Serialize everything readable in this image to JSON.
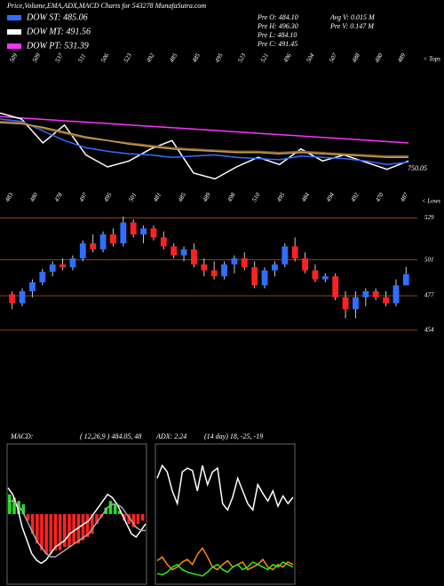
{
  "chart_data": [
    {
      "type": "indicator",
      "title": "Price,Volume,EMA,ADX,MACD Charts for 543278 MunafaSutra.com",
      "legend": [
        {
          "name": "DOW ST: 485.06",
          "color": "#2f6fff"
        },
        {
          "name": "DOW MT: 491.56",
          "color": "#ffffff"
        },
        {
          "name": "DOW PT: 531.39",
          "color": "#ff33ff"
        }
      ],
      "info": [
        "Pre  O: 484.10",
        "Pre  H: 496.30",
        "Pre  L: 484.10",
        "Pre  C: 491.45",
        "Avg  V: 0.015 M",
        "Pre  V: 0.147 M"
      ],
      "tops_label": "< Tops",
      "lows_label": "< Lows",
      "last_value": "750.05",
      "tops": [
        "509",
        "509",
        "537",
        "511",
        "506",
        "523",
        "492",
        "485",
        "485",
        "495",
        "523",
        "521",
        "496",
        "504",
        "507",
        "488",
        "480",
        "489"
      ],
      "lows": [
        "483",
        "480",
        "478",
        "497",
        "495",
        "501",
        "481",
        "485",
        "489",
        "498",
        "510",
        "495",
        "484",
        "494",
        "492",
        "470",
        "487"
      ],
      "ylim": [
        0,
        100
      ],
      "series": [
        {
          "name": "DOW PT: 531.39",
          "color": "#ff33ff",
          "values": [
            62,
            60,
            58,
            56,
            54,
            52,
            50,
            48,
            46,
            44,
            42,
            40
          ]
        },
        {
          "name": "DOW MT: 491.56",
          "color": "#ffffff",
          "values": [
            65,
            60,
            40,
            55,
            30,
            20,
            25,
            35,
            42,
            15,
            10,
            20,
            28,
            22,
            35,
            25,
            30,
            24,
            18,
            25
          ]
        },
        {
          "name": "DOW ST: 485.06",
          "color": "#2f6fff",
          "values": [
            60,
            58,
            50,
            42,
            36,
            33,
            31,
            30,
            28,
            29,
            30,
            28,
            27,
            26,
            29,
            28,
            27,
            25,
            22,
            24
          ]
        },
        {
          "name": "EMA",
          "color": "#8b5a2b",
          "values": [
            58,
            57,
            52,
            48,
            44,
            42,
            40,
            38,
            36,
            35,
            34,
            33,
            33,
            32,
            33,
            32,
            31,
            30,
            29,
            29
          ]
        },
        {
          "name": "EMA2",
          "color": "#c8a050",
          "values": [
            57,
            56,
            53,
            49,
            45,
            42,
            39,
            37,
            35,
            34,
            33,
            32,
            32,
            31,
            32,
            31,
            30,
            29,
            28,
            28
          ]
        }
      ]
    },
    {
      "type": "candlestick",
      "ylim": [
        448,
        537
      ],
      "yticks": [
        454,
        477,
        501,
        529
      ],
      "up_color": "#2f6fff",
      "down_color": "#ff2222",
      "ohlc": [
        [
          478,
          480,
          468,
          472
        ],
        [
          472,
          482,
          470,
          480
        ],
        [
          480,
          488,
          476,
          486
        ],
        [
          486,
          495,
          484,
          493
        ],
        [
          493,
          500,
          490,
          498
        ],
        [
          498,
          502,
          494,
          496
        ],
        [
          496,
          504,
          494,
          502
        ],
        [
          502,
          514,
          500,
          512
        ],
        [
          512,
          518,
          506,
          508
        ],
        [
          508,
          520,
          506,
          518
        ],
        [
          518,
          522,
          510,
          512
        ],
        [
          512,
          530,
          510,
          526
        ],
        [
          526,
          528,
          516,
          518
        ],
        [
          518,
          524,
          512,
          522
        ],
        [
          522,
          524,
          514,
          516
        ],
        [
          516,
          520,
          508,
          510
        ],
        [
          510,
          512,
          502,
          504
        ],
        [
          504,
          510,
          500,
          508
        ],
        [
          508,
          512,
          496,
          498
        ],
        [
          498,
          502,
          490,
          494
        ],
        [
          494,
          500,
          488,
          490
        ],
        [
          490,
          500,
          488,
          498
        ],
        [
          498,
          504,
          492,
          502
        ],
        [
          502,
          506,
          494,
          496
        ],
        [
          496,
          500,
          482,
          484
        ],
        [
          484,
          496,
          482,
          494
        ],
        [
          494,
          500,
          490,
          498
        ],
        [
          498,
          512,
          496,
          510
        ],
        [
          510,
          516,
          500,
          502
        ],
        [
          502,
          506,
          492,
          494
        ],
        [
          494,
          498,
          486,
          488
        ],
        [
          488,
          492,
          486,
          490
        ],
        [
          490,
          492,
          474,
          476
        ],
        [
          476,
          480,
          462,
          468
        ],
        [
          468,
          480,
          462,
          476
        ],
        [
          476,
          482,
          470,
          480
        ],
        [
          480,
          482,
          474,
          476
        ],
        [
          476,
          480,
          470,
          472
        ],
        [
          472,
          488,
          470,
          484
        ],
        [
          484,
          496.3,
          484.1,
          491.45
        ]
      ]
    },
    {
      "type": "macd",
      "title": "MACD:",
      "subtitle": "( 12,26,9 ) 484.05, 48",
      "ylim": [
        -20,
        20
      ],
      "histogram": [
        6,
        5,
        4,
        3,
        -2,
        -6,
        -9,
        -11,
        -12,
        -12,
        -11,
        -11,
        -10,
        -10,
        -9,
        -9,
        -8,
        -7,
        -6,
        -3,
        -1,
        2,
        4,
        3,
        1,
        -2,
        -3,
        -4,
        -3,
        -2
      ],
      "series": [
        {
          "name": "MACD",
          "color": "#ffffff",
          "values": [
            8,
            6,
            2,
            -4,
            -8,
            -12,
            -14,
            -15,
            -14,
            -12,
            -10,
            -9,
            -8,
            -6,
            -5,
            -4,
            -3,
            -2,
            0,
            2,
            4,
            6,
            5,
            3,
            0,
            -3,
            -6,
            -7,
            -5,
            -3
          ]
        },
        {
          "name": "Signal",
          "color": "#aaaaaa",
          "values": [
            4,
            4,
            3,
            1,
            -2,
            -5,
            -8,
            -10,
            -12,
            -13,
            -13,
            -12,
            -11,
            -10,
            -9,
            -8,
            -7,
            -6,
            -4,
            -2,
            0,
            2,
            3,
            3,
            2,
            0,
            -2,
            -4,
            -5,
            -5
          ]
        }
      ]
    },
    {
      "type": "adx",
      "title": "ADX: 2.24",
      "subtitle": "(14 day) 18, -25, -19",
      "ylim": [
        0,
        100
      ],
      "series": [
        {
          "name": "ADX",
          "color": "#ffffff",
          "values": [
            80,
            90,
            85,
            70,
            60,
            85,
            88,
            86,
            70,
            90,
            75,
            85,
            88,
            60,
            55,
            65,
            80,
            70,
            60,
            55,
            75,
            68,
            62,
            70,
            58,
            66,
            60,
            65
          ]
        },
        {
          "name": "-DI",
          "color": "#ff8c00",
          "values": [
            15,
            18,
            12,
            8,
            10,
            14,
            16,
            12,
            20,
            25,
            18,
            10,
            8,
            12,
            15,
            10,
            12,
            14,
            8,
            10,
            12,
            16,
            10,
            8,
            12,
            10,
            14,
            12
          ]
        },
        {
          "name": "+DI",
          "color": "#22ee22",
          "values": [
            5,
            4,
            6,
            10,
            12,
            8,
            6,
            5,
            4,
            3,
            6,
            10,
            12,
            8,
            6,
            10,
            12,
            8,
            10,
            14,
            12,
            10,
            8,
            12,
            10,
            14,
            12,
            10
          ]
        }
      ]
    }
  ]
}
